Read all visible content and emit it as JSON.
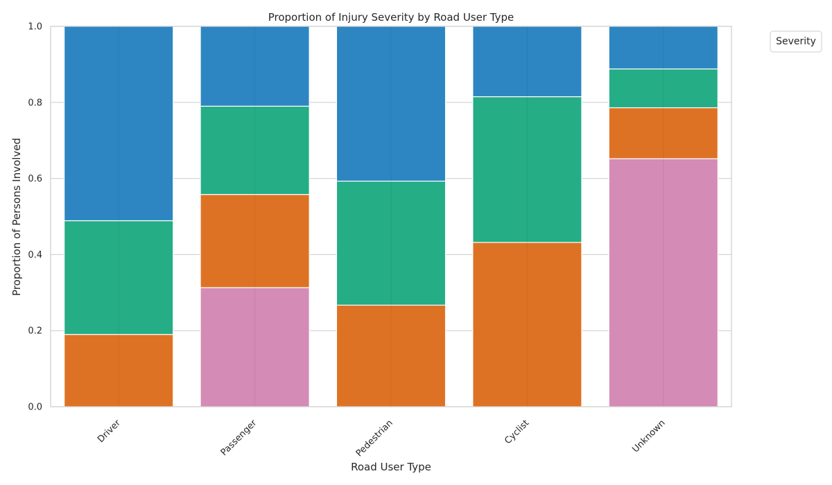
{
  "chart_data": {
    "type": "bar",
    "stacked": true,
    "title": "Proportion of Injury Severity by Road User Type",
    "xlabel": "Road User Type",
    "ylabel": "Proportion of Persons Involved",
    "categories": [
      "Driver",
      "Passenger",
      "Pedestrian",
      "Cyclist",
      "Unknown"
    ],
    "ylim": [
      0,
      1
    ],
    "yticks": [
      "0.0",
      "0.2",
      "0.4",
      "0.6",
      "0.8",
      "1.0"
    ],
    "grid": true,
    "legend": {
      "title": "Severity",
      "placement": "upper-right-outside",
      "entries": []
    },
    "series": [
      {
        "color": "#d48bb5",
        "values": [
          0.0,
          0.313,
          0.0,
          0.0,
          0.652
        ]
      },
      {
        "color": "#de7224",
        "values": [
          0.19,
          0.245,
          0.267,
          0.432,
          0.134
        ]
      },
      {
        "color": "#25ad86",
        "values": [
          0.299,
          0.232,
          0.326,
          0.383,
          0.102
        ]
      },
      {
        "color": "#2d86c1",
        "values": [
          0.511,
          0.21,
          0.407,
          0.185,
          0.112
        ]
      }
    ]
  }
}
